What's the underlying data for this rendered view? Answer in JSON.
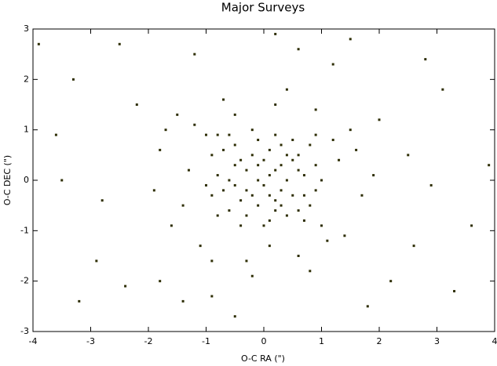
{
  "chart_data": {
    "type": "scatter",
    "title": "Major Surveys",
    "xlabel": "O-C RA (\")",
    "ylabel": "O-C DEC (\")",
    "xlim": [
      -4,
      4
    ],
    "ylim": [
      -3,
      3
    ],
    "xticks": [
      -4,
      -3,
      -2,
      -1,
      0,
      1,
      2,
      3,
      4
    ],
    "yticks": [
      -3,
      -2,
      -1,
      0,
      1,
      2,
      3
    ],
    "grid": false,
    "color": "#2e2e05",
    "x": [
      -0.5,
      0.2,
      0.1,
      -0.3,
      0.6,
      -0.8,
      0.4,
      -0.1,
      0.9,
      -0.6,
      0.3,
      -0.2,
      0.7,
      -0.4,
      0.0,
      0.5,
      -0.9,
      0.2,
      -0.7,
      0.8,
      -0.1,
      0.4,
      -0.3,
      0.1,
      0.6,
      -0.5,
      0.0,
      0.3,
      -0.8,
      0.9,
      -0.2,
      0.5,
      -0.6,
      0.1,
      -0.4,
      0.7,
      -0.1,
      0.2,
      -0.9,
      0.8,
      -0.3,
      0.4,
      -0.7,
      0.6,
      0.0,
      -0.5,
      0.3,
      -0.2,
      1.0,
      -1.0,
      0.1,
      -0.6,
      0.5,
      -0.4,
      0.2,
      0.9,
      -0.8,
      0.7,
      -0.1,
      0.3,
      1.3,
      -1.4,
      1.1,
      -1.2,
      0.2,
      -0.3,
      1.7,
      -1.8,
      1.5,
      -1.1,
      0.6,
      -0.7,
      1.9,
      -1.6,
      0.9,
      -0.2,
      1.4,
      -1.5,
      0.4,
      -1.9,
      1.2,
      -1.3,
      0.8,
      -0.9,
      1.6,
      -1.7,
      0.1,
      -0.5,
      1.0,
      -1.0,
      2.5,
      -2.8,
      3.1,
      -3.3,
      2.2,
      -2.4,
      0.6,
      -0.5,
      3.6,
      -3.6,
      2.8,
      -2.5,
      1.8,
      -1.4,
      3.9,
      -3.9,
      2.0,
      -2.2,
      1.2,
      -1.2,
      2.6,
      -2.9,
      0.2,
      -0.9,
      3.3,
      -3.2,
      2.9,
      -3.5,
      1.5,
      -1.8
    ],
    "y": [
      0.3,
      -0.4,
      0.1,
      -0.2,
      0.5,
      0.1,
      -0.7,
      0.8,
      -0.2,
      -0.6,
      0.3,
      0.5,
      0.1,
      -0.9,
      -0.1,
      -0.3,
      -0.3,
      0.9,
      0.6,
      0.7,
      -0.5,
      0.0,
      0.2,
      -0.8,
      -0.6,
      -0.1,
      0.4,
      -0.2,
      -0.7,
      0.3,
      -0.3,
      0.8,
      0.9,
      0.6,
      0.4,
      -0.8,
      0.0,
      0.2,
      0.5,
      -0.5,
      -0.7,
      0.5,
      -0.2,
      0.2,
      -0.9,
      0.7,
      -0.5,
      1.0,
      0.0,
      -0.1,
      -0.3,
      0.0,
      0.4,
      -0.4,
      -0.6,
      0.9,
      0.9,
      -0.3,
      0.3,
      0.7,
      0.4,
      -0.5,
      -1.2,
      1.1,
      1.5,
      -1.6,
      -0.3,
      0.6,
      1.0,
      -1.3,
      -1.5,
      1.6,
      0.1,
      -0.9,
      1.4,
      -1.9,
      -1.1,
      1.3,
      1.8,
      -0.2,
      0.8,
      0.2,
      -1.8,
      -1.6,
      0.6,
      1.0,
      -1.3,
      1.3,
      -0.9,
      0.9,
      0.5,
      -0.4,
      1.8,
      2.0,
      -2.0,
      -2.1,
      2.6,
      -2.7,
      -0.9,
      0.9,
      2.4,
      2.7,
      -2.5,
      -2.4,
      0.3,
      2.7,
      1.2,
      1.5,
      2.3,
      2.5,
      -1.3,
      -1.6,
      2.9,
      -2.3,
      -2.2,
      -2.4,
      -0.1,
      0.0,
      2.8,
      -2.0
    ]
  }
}
